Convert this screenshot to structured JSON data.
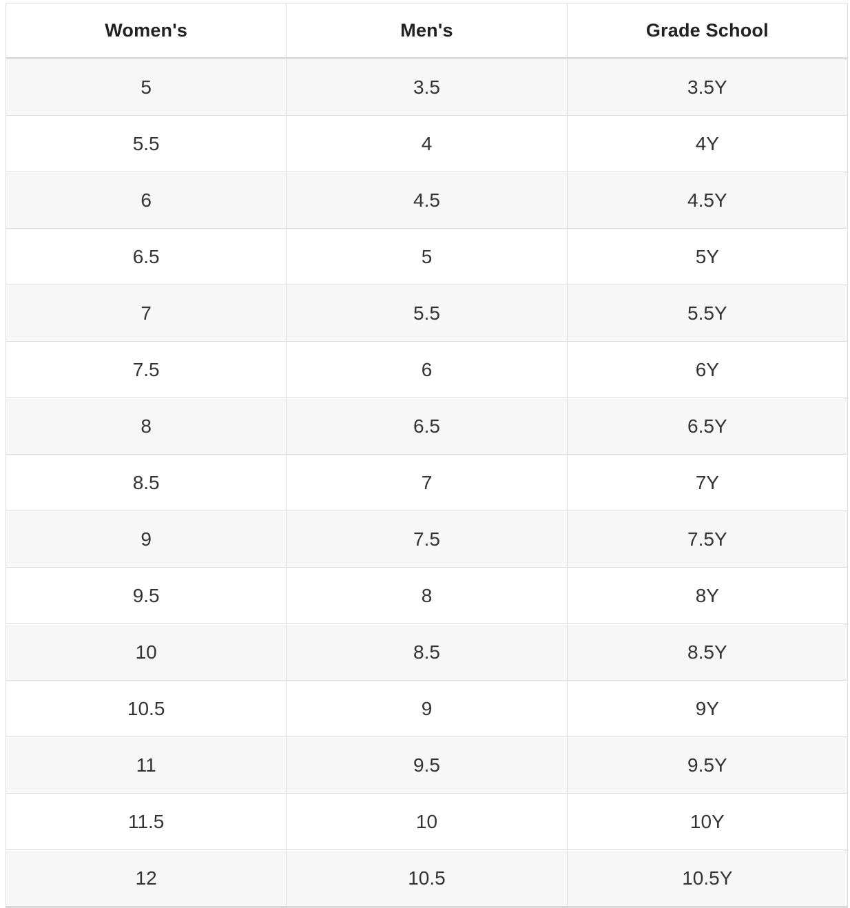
{
  "chart_data": {
    "type": "table",
    "columns": [
      "Women's",
      "Men's",
      "Grade School"
    ],
    "rows": [
      [
        "5",
        "3.5",
        "3.5Y"
      ],
      [
        "5.5",
        "4",
        "4Y"
      ],
      [
        "6",
        "4.5",
        "4.5Y"
      ],
      [
        "6.5",
        "5",
        "5Y"
      ],
      [
        "7",
        "5.5",
        "5.5Y"
      ],
      [
        "7.5",
        "6",
        "6Y"
      ],
      [
        "8",
        "6.5",
        "6.5Y"
      ],
      [
        "8.5",
        "7",
        "7Y"
      ],
      [
        "9",
        "7.5",
        "7.5Y"
      ],
      [
        "9.5",
        "8",
        "8Y"
      ],
      [
        "10",
        "8.5",
        "8.5Y"
      ],
      [
        "10.5",
        "9",
        "9Y"
      ],
      [
        "11",
        "9.5",
        "9.5Y"
      ],
      [
        "11.5",
        "10",
        "10Y"
      ],
      [
        "12",
        "10.5",
        "10.5Y"
      ]
    ],
    "layout": {
      "grid": true,
      "striped_rows": true
    }
  },
  "colors": {
    "border": "#dcdcdc",
    "bottom_border": "#d8d8d8",
    "row_stripe": "#f7f7f7",
    "row_plain": "#ffffff",
    "header_text": "#222222",
    "cell_text": "#333333"
  }
}
